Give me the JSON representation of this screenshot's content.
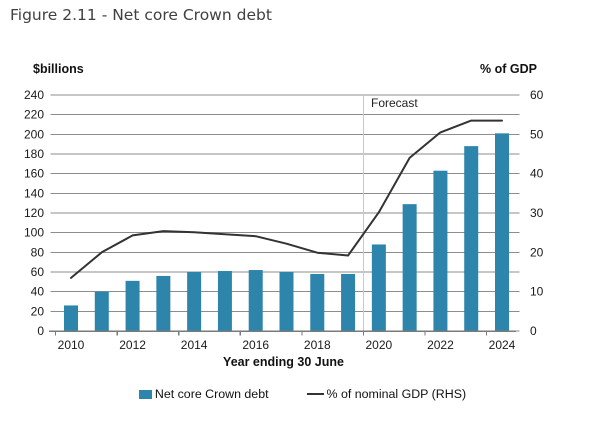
{
  "title": "Figure 2.11 - Net core Crown debt",
  "axes": {
    "left_unit_label": "$billions",
    "right_unit_label": "% of GDP",
    "x_title": "Year ending 30 June"
  },
  "forecast_label": "Forecast",
  "legend": {
    "items": [
      {
        "label": "Net core Crown debt",
        "marker": "square"
      },
      {
        "label": "% of nominal GDP (RHS)",
        "marker": "line"
      }
    ]
  },
  "colors": {
    "bar": "#2d85ac",
    "line": "#333333",
    "grid": "#8d8d8d",
    "axis": "#7a7a7a",
    "forecast_line": "#c9c9c9",
    "tick_text": "#1a1a1a"
  },
  "chart_data": {
    "type": "bar",
    "title": "Figure 2.11 - Net core Crown debt",
    "xlabel": "Year ending 30 June",
    "categories": [
      2010,
      2011,
      2012,
      2013,
      2014,
      2015,
      2016,
      2017,
      2018,
      2019,
      2020,
      2021,
      2022,
      2023,
      2024
    ],
    "x_tick_labels": [
      "2010",
      "2012",
      "2014",
      "2016",
      "2018",
      "2020",
      "2022",
      "2024"
    ],
    "series": [
      {
        "name": "Net core Crown debt",
        "type": "bar",
        "axis": "left",
        "unit": "$billions",
        "values": [
          26,
          40,
          51,
          56,
          60,
          61,
          62,
          60,
          58,
          58,
          88,
          129,
          163,
          188,
          201
        ]
      },
      {
        "name": "% of nominal GDP (RHS)",
        "type": "line",
        "axis": "right",
        "unit": "% of GDP",
        "values": [
          13.5,
          20.0,
          24.3,
          25.4,
          25.1,
          24.6,
          24.1,
          22.2,
          19.9,
          19.2,
          30.2,
          44.0,
          50.5,
          53.5,
          53.5
        ]
      }
    ],
    "left_axis": {
      "label": "$billions",
      "min": 0,
      "max": 240,
      "step": 20
    },
    "right_axis": {
      "label": "% of GDP",
      "min": 0,
      "max": 60,
      "step": 10
    },
    "forecast_start_category": 2020,
    "grid": true,
    "legend_position": "bottom"
  }
}
